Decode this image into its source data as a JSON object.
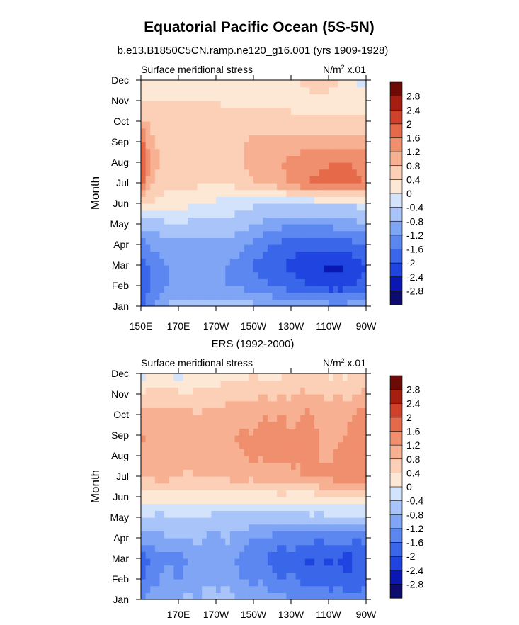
{
  "figure": {
    "title": "Equatorial Pacific Ocean (5S-5N)"
  },
  "colorbar": {
    "levels": [
      -2.8,
      -2.4,
      -2,
      -1.6,
      -1.2,
      -0.8,
      -0.4,
      0,
      0.4,
      0.8,
      1.2,
      1.6,
      2,
      2.4,
      2.8
    ],
    "labels": [
      "2.8",
      "2.4",
      "2",
      "1.6",
      "1.2",
      "0.8",
      "0.4",
      "0",
      "-0.4",
      "-0.8",
      "-1.2",
      "-1.6",
      "-2",
      "-2.4",
      "-2.8"
    ],
    "colors": [
      "#0b0c6e",
      "#0a17b0",
      "#1f44e0",
      "#3a66ea",
      "#5c87f0",
      "#7fa5f4",
      "#a8c4f8",
      "#d2e3fb",
      "#fde8d6",
      "#fbd0b6",
      "#f7b192",
      "#f08f6e",
      "#e66a4a",
      "#cf4128",
      "#a51e10",
      "#6e0a06"
    ]
  },
  "chart_data": [
    {
      "type": "heatmap",
      "subtitle": "b.e13.B1850C5CN.ramp.ne120_g16.001 (yrs 1909-1928)",
      "left_string": "Surface meridional stress",
      "units_text": "N/m",
      "units_exp": "2",
      "units_scale": " x.01",
      "xlabel": "",
      "ylabel": "Month",
      "x_longitudes": [
        150,
        170,
        190,
        210,
        230,
        250,
        270
      ],
      "x_tick_labels": [
        "150E",
        "170E",
        "170W",
        "150W",
        "130W",
        "110W",
        "90W"
      ],
      "y_tick_labels": [
        "Jan",
        "Feb",
        "Mar",
        "Apr",
        "May",
        "Jun",
        "Jul",
        "Aug",
        "Sep",
        "Oct",
        "Nov",
        "Dec"
      ],
      "grid_x": [
        150,
        155,
        160,
        165,
        170,
        175,
        180,
        185,
        190,
        195,
        200,
        205,
        210,
        215,
        220,
        225,
        230,
        235,
        240,
        245,
        250,
        255,
        260,
        265,
        270
      ],
      "values_x0.01_N_per_m2": [
        [
          -1.9,
          -1.2,
          -1.0,
          -0.7,
          -0.7,
          -0.6,
          -0.6,
          -0.5,
          -0.5,
          -0.5,
          -0.5,
          -0.6,
          -0.7,
          -0.7,
          -0.8,
          -0.8,
          -0.9,
          -0.9,
          -1.0,
          -1.0,
          -1.0,
          -1.0,
          -1.0,
          -0.9,
          -0.8
        ],
        [
          -2.0,
          -1.6,
          -1.3,
          -1.2,
          -1.2,
          -1.2,
          -1.2,
          -1.2,
          -1.2,
          -1.2,
          -1.3,
          -1.3,
          -1.4,
          -1.5,
          -1.6,
          -1.7,
          -1.8,
          -1.9,
          -2.0,
          -2.1,
          -2.2,
          -2.2,
          -2.2,
          -2.0,
          -1.8
        ],
        [
          -1.9,
          -1.5,
          -1.3,
          -1.2,
          -1.2,
          -1.2,
          -1.2,
          -1.2,
          -1.2,
          -1.2,
          -1.3,
          -1.4,
          -1.6,
          -1.8,
          -1.9,
          -2.0,
          -2.1,
          -2.2,
          -2.3,
          -2.4,
          -2.5,
          -2.5,
          -2.4,
          -2.2,
          -2.0
        ],
        [
          -1.4,
          -1.2,
          -1.0,
          -1.0,
          -1.0,
          -1.0,
          -1.0,
          -1.0,
          -1.0,
          -1.0,
          -1.0,
          -1.1,
          -1.3,
          -1.5,
          -1.6,
          -1.7,
          -1.8,
          -1.9,
          -1.9,
          -1.9,
          -1.9,
          -1.9,
          -1.8,
          -1.7,
          -1.6
        ],
        [
          -0.6,
          -0.6,
          -0.6,
          -0.5,
          -0.5,
          -0.5,
          -0.5,
          -0.5,
          -0.5,
          -0.5,
          -0.6,
          -0.7,
          -0.8,
          -0.9,
          -1.0,
          -1.1,
          -1.1,
          -1.1,
          -1.1,
          -1.1,
          -1.1,
          -1.0,
          -1.0,
          -0.9,
          -0.9
        ],
        [
          0.6,
          0.4,
          0.3,
          0.2,
          0.1,
          0.1,
          0.0,
          0.0,
          -0.1,
          -0.2,
          -0.2,
          -0.3,
          -0.3,
          -0.4,
          -0.4,
          -0.4,
          -0.4,
          -0.4,
          -0.4,
          -0.3,
          -0.3,
          -0.3,
          -0.3,
          -0.3,
          -0.3
        ],
        [
          1.8,
          0.9,
          0.6,
          0.5,
          0.5,
          0.5,
          0.5,
          0.4,
          0.4,
          0.4,
          0.5,
          0.6,
          0.8,
          0.9,
          1.0,
          1.1,
          1.3,
          1.5,
          1.6,
          1.7,
          1.7,
          1.8,
          1.9,
          1.7,
          1.5
        ],
        [
          2.4,
          1.0,
          0.8,
          0.7,
          0.7,
          0.7,
          0.7,
          0.7,
          0.7,
          0.7,
          0.7,
          0.8,
          1.0,
          1.1,
          1.2,
          1.2,
          1.3,
          1.4,
          1.5,
          1.5,
          1.6,
          1.6,
          1.6,
          1.5,
          1.4
        ],
        [
          1.9,
          0.9,
          0.7,
          0.7,
          0.7,
          0.7,
          0.7,
          0.7,
          0.7,
          0.7,
          0.8,
          0.8,
          0.9,
          1.0,
          1.0,
          1.0,
          1.0,
          1.0,
          1.0,
          1.0,
          1.0,
          1.0,
          1.0,
          1.0,
          1.0
        ],
        [
          0.9,
          0.7,
          0.6,
          0.6,
          0.6,
          0.6,
          0.6,
          0.6,
          0.6,
          0.6,
          0.6,
          0.6,
          0.6,
          0.6,
          0.6,
          0.6,
          0.5,
          0.5,
          0.5,
          0.5,
          0.5,
          0.5,
          0.5,
          0.5,
          0.5
        ],
        [
          0.4,
          0.4,
          0.4,
          0.4,
          0.4,
          0.4,
          0.4,
          0.4,
          0.4,
          0.3,
          0.3,
          0.3,
          0.3,
          0.3,
          0.3,
          0.3,
          0.3,
          0.3,
          0.3,
          0.3,
          0.3,
          0.3,
          0.3,
          0.3,
          0.3
        ],
        [
          -0.1,
          0.2,
          0.3,
          0.2,
          0.2,
          0.2,
          0.2,
          0.2,
          0.2,
          0.2,
          0.2,
          0.2,
          0.2,
          0.2,
          0.2,
          0.2,
          0.3,
          0.4,
          0.5,
          0.5,
          0.5,
          0.4,
          0.2,
          -0.1,
          -0.2
        ]
      ],
      "levels": [
        -2.8,
        -2.4,
        -2,
        -1.6,
        -1.2,
        -0.8,
        -0.4,
        0,
        0.4,
        0.8,
        1.2,
        1.6,
        2,
        2.4,
        2.8
      ]
    },
    {
      "type": "heatmap",
      "subtitle": "ERS (1992-2000)",
      "left_string": "Surface meridional stress",
      "units_text": "N/m",
      "units_exp": "2",
      "units_scale": " x.01",
      "xlabel": "",
      "ylabel": "Month",
      "x_longitudes": [
        170,
        190,
        210,
        230,
        250,
        270
      ],
      "x_tick_labels": [
        "170E",
        "170W",
        "150W",
        "130W",
        "110W",
        "90W"
      ],
      "y_tick_labels": [
        "Jan",
        "Feb",
        "Mar",
        "Apr",
        "May",
        "Jun",
        "Jul",
        "Aug",
        "Sep",
        "Oct",
        "Nov",
        "Dec"
      ],
      "grid_x": [
        150,
        155,
        160,
        165,
        170,
        175,
        180,
        185,
        190,
        195,
        200,
        205,
        210,
        215,
        220,
        225,
        230,
        235,
        240,
        245,
        250,
        255,
        260,
        265,
        270
      ],
      "values_x0.01_N_per_m2": [
        [
          -1.3,
          -0.9,
          -1.0,
          -0.7,
          -0.9,
          -0.6,
          -1.0,
          -0.5,
          -0.7,
          -0.6,
          -0.8,
          -0.9,
          -1.0,
          -0.9,
          -1.1,
          -1.0,
          -1.2,
          -1.1,
          -1.3,
          -1.2,
          -1.4,
          -1.3,
          -1.5,
          -1.4,
          -1.3
        ],
        [
          -1.7,
          -1.4,
          -1.2,
          -1.0,
          -1.3,
          -0.9,
          -1.1,
          -0.8,
          -1.0,
          -0.9,
          -1.1,
          -1.2,
          -1.3,
          -1.2,
          -1.5,
          -1.6,
          -1.5,
          -1.7,
          -1.8,
          -1.7,
          -1.9,
          -1.8,
          -2.0,
          -1.9,
          -1.8
        ],
        [
          -1.8,
          -1.6,
          -1.4,
          -1.3,
          -1.4,
          -1.2,
          -1.0,
          -1.1,
          -1.2,
          -0.9,
          -1.2,
          -1.4,
          -1.5,
          -1.6,
          -1.8,
          -1.9,
          -1.8,
          -2.0,
          -2.1,
          -1.9,
          -2.1,
          -2.0,
          -2.2,
          -1.9,
          -1.8
        ],
        [
          -0.9,
          -1.0,
          -0.9,
          -0.8,
          -0.8,
          -0.9,
          -0.7,
          -0.9,
          -1.1,
          -0.7,
          -0.9,
          -1.0,
          -1.3,
          -1.2,
          -1.3,
          -1.4,
          -1.3,
          -1.5,
          -1.4,
          -1.6,
          -1.4,
          -1.5,
          -1.4,
          -1.6,
          -1.4
        ],
        [
          -0.5,
          -0.5,
          -0.6,
          -0.4,
          -0.5,
          -0.3,
          -0.5,
          -0.4,
          -0.6,
          -0.5,
          -0.7,
          -0.5,
          -0.6,
          -0.6,
          -0.7,
          -0.6,
          -0.6,
          -0.6,
          -0.5,
          -0.6,
          -0.5,
          -0.5,
          -0.5,
          -0.5,
          -0.5
        ],
        [
          0.3,
          0.2,
          0.3,
          0.2,
          0.3,
          0.1,
          0.2,
          0.1,
          0.2,
          0.1,
          0.2,
          0.2,
          0.1,
          0.2,
          0.2,
          0.3,
          0.2,
          0.1,
          0.2,
          0.3,
          0.3,
          0.4,
          0.3,
          0.4,
          0.4
        ],
        [
          0.9,
          0.8,
          1.0,
          0.9,
          0.9,
          0.7,
          0.8,
          0.9,
          0.8,
          0.9,
          1.0,
          1.0,
          0.9,
          1.1,
          1.0,
          1.1,
          1.1,
          1.2,
          1.2,
          1.3,
          1.3,
          1.5,
          1.6,
          1.5,
          1.5
        ],
        [
          1.0,
          1.1,
          0.9,
          1.0,
          0.8,
          1.1,
          0.9,
          1.2,
          1.0,
          1.2,
          1.1,
          1.2,
          1.3,
          1.2,
          1.3,
          1.2,
          1.3,
          1.2,
          1.3,
          1.2,
          1.1,
          1.3,
          1.4,
          1.5,
          1.4
        ],
        [
          1.3,
          1.1,
          1.2,
          1.0,
          1.1,
          0.9,
          1.1,
          1.0,
          1.2,
          1.1,
          1.2,
          1.3,
          1.2,
          1.4,
          1.3,
          1.4,
          1.2,
          1.3,
          1.3,
          1.2,
          1.2,
          1.1,
          1.2,
          1.4,
          1.4
        ],
        [
          0.9,
          1.0,
          0.9,
          1.0,
          0.9,
          0.9,
          0.8,
          1.0,
          0.9,
          1.0,
          1.0,
          1.1,
          1.0,
          1.2,
          1.1,
          1.2,
          1.1,
          1.2,
          1.3,
          1.1,
          1.2,
          1.0,
          1.1,
          1.3,
          1.4
        ],
        [
          0.4,
          0.5,
          0.5,
          0.6,
          0.5,
          0.4,
          0.5,
          0.6,
          0.5,
          0.6,
          0.7,
          0.6,
          0.7,
          0.8,
          0.7,
          0.8,
          0.7,
          0.9,
          0.8,
          0.8,
          0.7,
          0.8,
          0.7,
          0.8,
          1.0
        ],
        [
          -0.2,
          0.1,
          -0.1,
          0.2,
          -0.3,
          0.1,
          0.0,
          0.2,
          0.1,
          0.3,
          0.2,
          0.3,
          0.4,
          0.2,
          0.3,
          0.3,
          0.4,
          0.5,
          0.4,
          0.5,
          0.3,
          0.4,
          0.3,
          0.5,
          0.4
        ]
      ],
      "levels": [
        -2.8,
        -2.4,
        -2,
        -1.6,
        -1.2,
        -0.8,
        -0.4,
        0,
        0.4,
        0.8,
        1.2,
        1.6,
        2,
        2.4,
        2.8
      ]
    }
  ]
}
